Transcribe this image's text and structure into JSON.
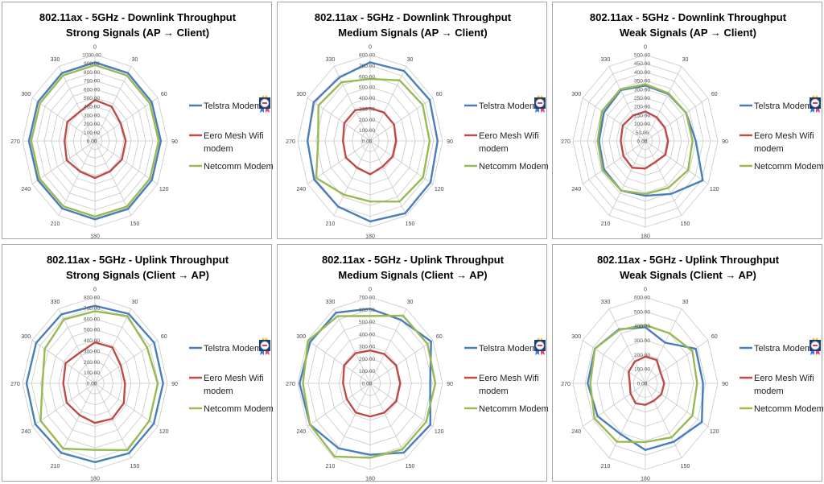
{
  "legend_colors": {
    "Telstra Modem": "#4a7ebb",
    "Eero Mesh Wifi modem": "#be4b48",
    "Netcomm Modem": "#98b954"
  },
  "legend_badge_icon": "award-badge-icon",
  "chart_data": [
    {
      "type": "radar",
      "title": "802.11ax - 5GHz - Downlink  Throughput",
      "subtitle": "Strong Signals (AP → Client)",
      "categories": [
        "0",
        "30",
        "60",
        "90",
        "120",
        "150",
        "180",
        "210",
        "240",
        "270",
        "300",
        "330"
      ],
      "rlim": [
        0,
        1000
      ],
      "rticks": [
        "0.00",
        "100.00",
        "200.00",
        "300.00",
        "400.00",
        "500.00",
        "600.00",
        "700.00",
        "800.00",
        "900.00",
        "1000.00"
      ],
      "grid": true,
      "legend": "right",
      "series": [
        {
          "name": "Telstra Modem",
          "values": [
            912,
            910,
            905,
            910,
            908,
            912,
            910,
            905,
            910,
            912,
            908,
            910
          ]
        },
        {
          "name": "Eero Mesh Wifi modem",
          "values": [
            475,
            460,
            410,
            425,
            430,
            410,
            430,
            410,
            450,
            420,
            440,
            400
          ]
        },
        {
          "name": "Netcomm Modem",
          "values": [
            880,
            878,
            875,
            880,
            876,
            880,
            878,
            875,
            880,
            880,
            876,
            878
          ]
        }
      ]
    },
    {
      "type": "radar",
      "title": "802.11ax - 5GHz - Downlink  Throughput",
      "subtitle": "Medium Signals (AP → Client)",
      "categories": [
        "0",
        "30",
        "60",
        "90",
        "120",
        "150",
        "180",
        "210",
        "240",
        "270",
        "300",
        "330"
      ],
      "rlim": [
        0,
        800
      ],
      "rticks": [
        "0.00",
        "100.00",
        "200.00",
        "300.00",
        "400.00",
        "500.00",
        "600.00",
        "700.00",
        "800.00"
      ],
      "grid": true,
      "legend": "right",
      "series": [
        {
          "name": "Telstra Modem",
          "values": [
            730,
            750,
            760,
            745,
            770,
            775,
            747,
            705,
            715,
            692,
            720,
            680
          ]
        },
        {
          "name": "Eero Mesh Wifi modem",
          "values": [
            305,
            305,
            305,
            286,
            287,
            275,
            310,
            287,
            310,
            300,
            330,
            330
          ]
        },
        {
          "name": "Netcomm Modem",
          "values": [
            575,
            650,
            670,
            657,
            675,
            650,
            562,
            577,
            688,
            575,
            660,
            630
          ]
        }
      ]
    },
    {
      "type": "radar",
      "title": "802.11ax - 5GHz - Downlink  Throughput",
      "subtitle": "Weak Signals (AP → Client)",
      "categories": [
        "0",
        "30",
        "60",
        "90",
        "120",
        "150",
        "180",
        "210",
        "240",
        "270",
        "300",
        "330"
      ],
      "rlim": [
        0,
        500
      ],
      "rticks": [
        "0.00",
        "50.00",
        "100.00",
        "150.00",
        "200.00",
        "250.00",
        "300.00",
        "350.00",
        "400.00",
        "450.00",
        "500.00"
      ],
      "grid": true,
      "legend": "right",
      "series": [
        {
          "name": "Telstra Modem",
          "values": [
            321,
            315,
            325,
            348,
            458,
            355,
            318,
            333,
            330,
            320,
            330,
            340
          ]
        },
        {
          "name": "Eero Mesh Wifi modem",
          "values": [
            171,
            158,
            155,
            157,
            160,
            140,
            160,
            180,
            175,
            170,
            180,
            170
          ]
        },
        {
          "name": "Netcomm Modem",
          "values": [
            329,
            320,
            325,
            326,
            340,
            315,
            308,
            333,
            340,
            330,
            345,
            345
          ]
        }
      ]
    },
    {
      "type": "radar",
      "title": "802.11ax - 5GHz - Uplink  Throughput",
      "subtitle": "Strong Signals (Client → AP)",
      "categories": [
        "0",
        "30",
        "60",
        "90",
        "120",
        "150",
        "180",
        "210",
        "240",
        "270",
        "300",
        "330"
      ],
      "rlim": [
        0,
        800
      ],
      "rticks": [
        "0.00",
        "100.00",
        "200.00",
        "300.00",
        "400.00",
        "500.00",
        "600.00",
        "700.00",
        "800.00"
      ],
      "grid": true,
      "legend": "right",
      "series": [
        {
          "name": "Telstra Modem",
          "values": [
            720,
            745,
            755,
            753,
            750,
            750,
            732,
            745,
            760,
            756,
            750,
            740
          ]
        },
        {
          "name": "Eero Mesh Wifi modem",
          "values": [
            380,
            385,
            330,
            332,
            368,
            380,
            368,
            340,
            360,
            350,
            375,
            330
          ]
        },
        {
          "name": "Netcomm Modem",
          "values": [
            670,
            720,
            665,
            694,
            694,
            716,
            618,
            700,
            694,
            580,
            640,
            685
          ]
        }
      ]
    },
    {
      "type": "radar",
      "title": "802.11ax - 5GHz - Uplink  Throughput",
      "subtitle": "Medium Signals (Client → AP)",
      "categories": [
        "0",
        "30",
        "60",
        "90",
        "120",
        "150",
        "180",
        "210",
        "240",
        "270",
        "300",
        "330"
      ],
      "rlim": [
        0,
        700
      ],
      "rticks": [
        "0.00",
        "100.00",
        "200.00",
        "300.00",
        "400.00",
        "500.00",
        "600.00",
        "700.00"
      ],
      "grid": true,
      "legend": "right",
      "series": [
        {
          "name": "Telstra Modem",
          "values": [
            606,
            595,
            680,
            580,
            672,
            650,
            580,
            610,
            672,
            682,
            670,
            662
          ]
        },
        {
          "name": "Eero Mesh Wifi modem",
          "values": [
            267,
            275,
            290,
            290,
            290,
            275,
            270,
            275,
            260,
            262,
            290,
            283
          ]
        },
        {
          "name": "Netcomm Modem",
          "values": [
            547,
            635,
            640,
            630,
            625,
            620,
            605,
            687,
            672,
            650,
            693,
            630
          ]
        }
      ]
    },
    {
      "type": "radar",
      "title": "802.11ax - 5GHz - Uplink  Throughput",
      "subtitle": "Weak Signals (Client → AP)",
      "categories": [
        "0",
        "30",
        "60",
        "90",
        "120",
        "150",
        "180",
        "210",
        "240",
        "270",
        "300",
        "330"
      ],
      "rlim": [
        0,
        600
      ],
      "rticks": [
        "0.00",
        "100.00",
        "200.00",
        "300.00",
        "400.00",
        "500.00",
        "600.00"
      ],
      "grid": true,
      "legend": "right",
      "series": [
        {
          "name": "Telstra Modem",
          "values": [
            391,
            327,
            482,
            478,
            540,
            470,
            464,
            409,
            457,
            478,
            483,
            435
          ]
        },
        {
          "name": "Eero Mesh Wifi modem",
          "values": [
            186,
            188,
            146,
            156,
            153,
            140,
            150,
            161,
            142,
            129,
            160,
            175
          ]
        },
        {
          "name": "Netcomm Modem",
          "values": [
            406,
            402,
            450,
            429,
            450,
            434,
            409,
            470,
            487,
            456,
            483,
            430
          ]
        }
      ]
    }
  ]
}
